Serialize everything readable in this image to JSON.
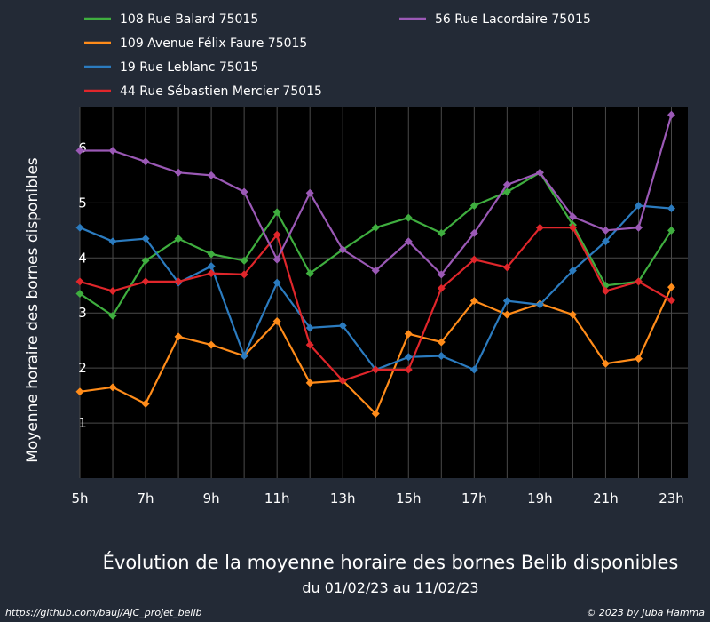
{
  "chart_data": {
    "type": "line",
    "title": "Évolution de la moyenne horaire des bornes Belib disponibles",
    "subtitle": "du 01/02/23 au 11/02/23",
    "ylabel": "Moyenne horaire des bornes disponibles",
    "xlabel": "",
    "x": [
      5,
      6,
      7,
      8,
      9,
      10,
      11,
      12,
      13,
      14,
      15,
      16,
      17,
      18,
      19,
      20,
      21,
      22,
      23
    ],
    "x_tick_labels": [
      "5h",
      "7h",
      "9h",
      "11h",
      "13h",
      "15h",
      "17h",
      "19h",
      "21h",
      "23h"
    ],
    "x_tick_values": [
      5,
      7,
      9,
      11,
      13,
      15,
      17,
      19,
      21,
      23
    ],
    "y_tick_labels": [
      "1",
      "2",
      "3",
      "4",
      "5",
      "6"
    ],
    "y_tick_values": [
      1,
      2,
      3,
      4,
      5,
      6
    ],
    "xlim": [
      5,
      23.5
    ],
    "ylim": [
      0,
      6.75
    ],
    "grid": true,
    "legend_position": "top",
    "series": [
      {
        "name": "108 Rue Balard 75015",
        "color": "#3fae3f",
        "values": [
          3.35,
          2.95,
          3.95,
          4.35,
          4.07,
          3.95,
          4.83,
          3.72,
          4.15,
          4.55,
          4.73,
          4.45,
          4.95,
          5.2,
          5.55,
          4.6,
          3.5,
          3.57,
          4.5
        ]
      },
      {
        "name": "109 Avenue Félix Faure 75015",
        "color": "#ff8c1a",
        "values": [
          1.57,
          1.65,
          1.35,
          2.57,
          2.42,
          2.22,
          2.85,
          1.73,
          1.77,
          1.17,
          2.62,
          2.47,
          3.22,
          2.97,
          3.17,
          2.97,
          2.08,
          2.17,
          3.47
        ]
      },
      {
        "name": "19 Rue Leblanc 75015",
        "color": "#2b7bbf",
        "values": [
          4.55,
          4.3,
          4.35,
          3.55,
          3.85,
          2.22,
          3.55,
          2.73,
          2.77,
          1.97,
          2.2,
          2.22,
          1.97,
          3.22,
          3.15,
          3.77,
          4.3,
          4.95,
          4.9
        ]
      },
      {
        "name": "44 Rue Sébastien Mercier 75015",
        "color": "#e0262b",
        "values": [
          3.57,
          3.4,
          3.57,
          3.57,
          3.72,
          3.7,
          4.42,
          2.42,
          1.77,
          1.97,
          1.97,
          3.45,
          3.97,
          3.83,
          4.55,
          4.55,
          3.4,
          3.57,
          3.23
        ]
      },
      {
        "name": "56 Rue Lacordaire 75015",
        "color": "#9b59b6",
        "values": [
          5.95,
          5.95,
          5.75,
          5.55,
          5.5,
          5.2,
          3.97,
          5.18,
          4.15,
          3.77,
          4.3,
          3.7,
          4.45,
          5.33,
          5.55,
          4.75,
          4.5,
          4.55,
          6.6
        ]
      }
    ]
  },
  "footer": {
    "source": "https://github.com/bauj/AJC_projet_belib",
    "credit": "© 2023 by Juba Hamma"
  }
}
